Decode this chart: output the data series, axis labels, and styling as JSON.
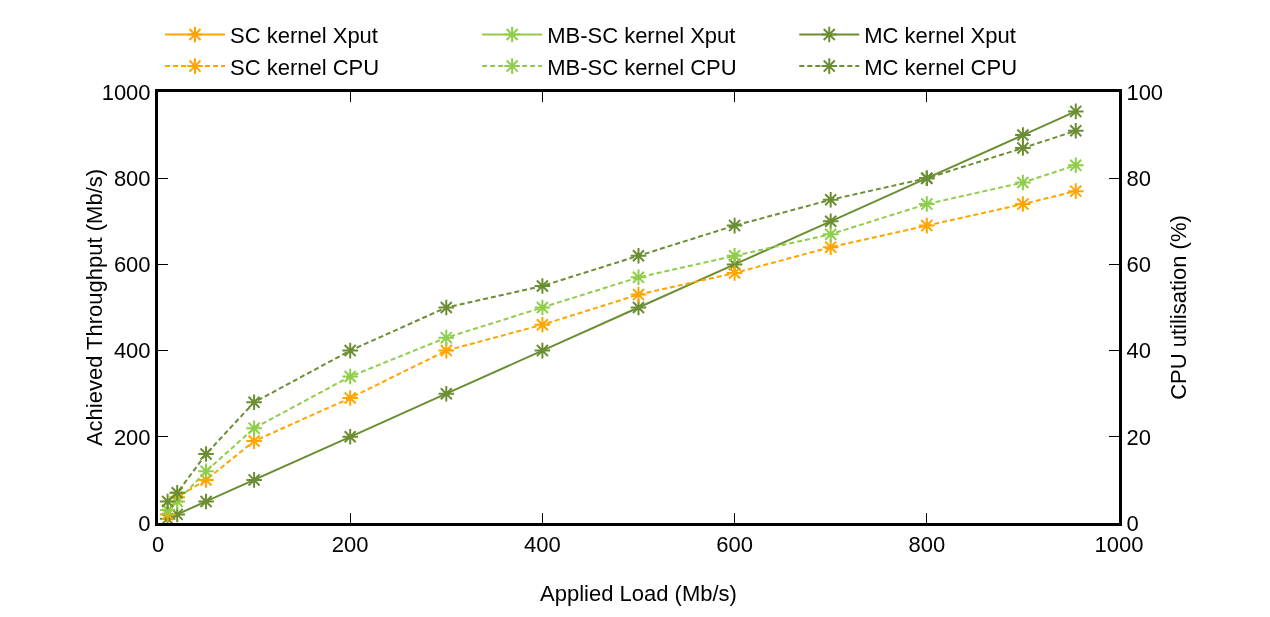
{
  "chart_data": {
    "type": "line",
    "xlabel": "Applied Load (Mb/s)",
    "ylabel": "Achieved Throughput (Mb/s)",
    "y2label": "CPU utilisation (%)",
    "x": [
      10,
      20,
      50,
      100,
      200,
      300,
      400,
      500,
      600,
      700,
      800,
      900,
      955
    ],
    "xlim": [
      0,
      1000
    ],
    "xticks": [
      0,
      200,
      400,
      600,
      800,
      1000
    ],
    "ylim": [
      0,
      1000
    ],
    "yticks": [
      0,
      200,
      400,
      600,
      800,
      1000
    ],
    "y2lim": [
      0,
      100
    ],
    "y2ticks": [
      0,
      20,
      40,
      60,
      80,
      100
    ],
    "grid": false,
    "legend": "top",
    "marker": "cross",
    "series": [
      {
        "name": "SC kernel Xput",
        "color": "#ffa500",
        "line_style": "solid",
        "values": [
          null,
          null,
          null,
          null,
          null,
          null,
          null,
          null,
          null,
          null,
          null,
          null,
          null
        ]
      },
      {
        "name": "MB-SC kernel Xput",
        "color": "#8fce4a",
        "line_style": "solid",
        "values": [
          null,
          null,
          null,
          null,
          null,
          null,
          null,
          null,
          null,
          null,
          null,
          null,
          null
        ]
      },
      {
        "name": "MC kernel Xput",
        "color": "#6b8e33",
        "line_style": "solid",
        "values": [
          10,
          20,
          50,
          100,
          200,
          300,
          400,
          500,
          600,
          700,
          800,
          900,
          955
        ]
      },
      {
        "name": "SC kernel CPU",
        "color": "#ffa500",
        "line_style": "dashed",
        "axis": "y2",
        "values": [
          2,
          6,
          10,
          19,
          29,
          40,
          46,
          53,
          58,
          64,
          69,
          74,
          77
        ]
      },
      {
        "name": "MB-SC kernel CPU",
        "color": "#8fce4a",
        "line_style": "dashed",
        "axis": "y2",
        "values": [
          3,
          5,
          12,
          22,
          34,
          43,
          50,
          57,
          62,
          67,
          74,
          79,
          83
        ]
      },
      {
        "name": "MC kernel CPU",
        "color": "#6b8e33",
        "line_style": "dashed",
        "axis": "y2",
        "values": [
          5,
          7,
          16,
          28,
          40,
          50,
          55,
          62,
          69,
          75,
          80,
          87,
          91
        ]
      }
    ]
  }
}
